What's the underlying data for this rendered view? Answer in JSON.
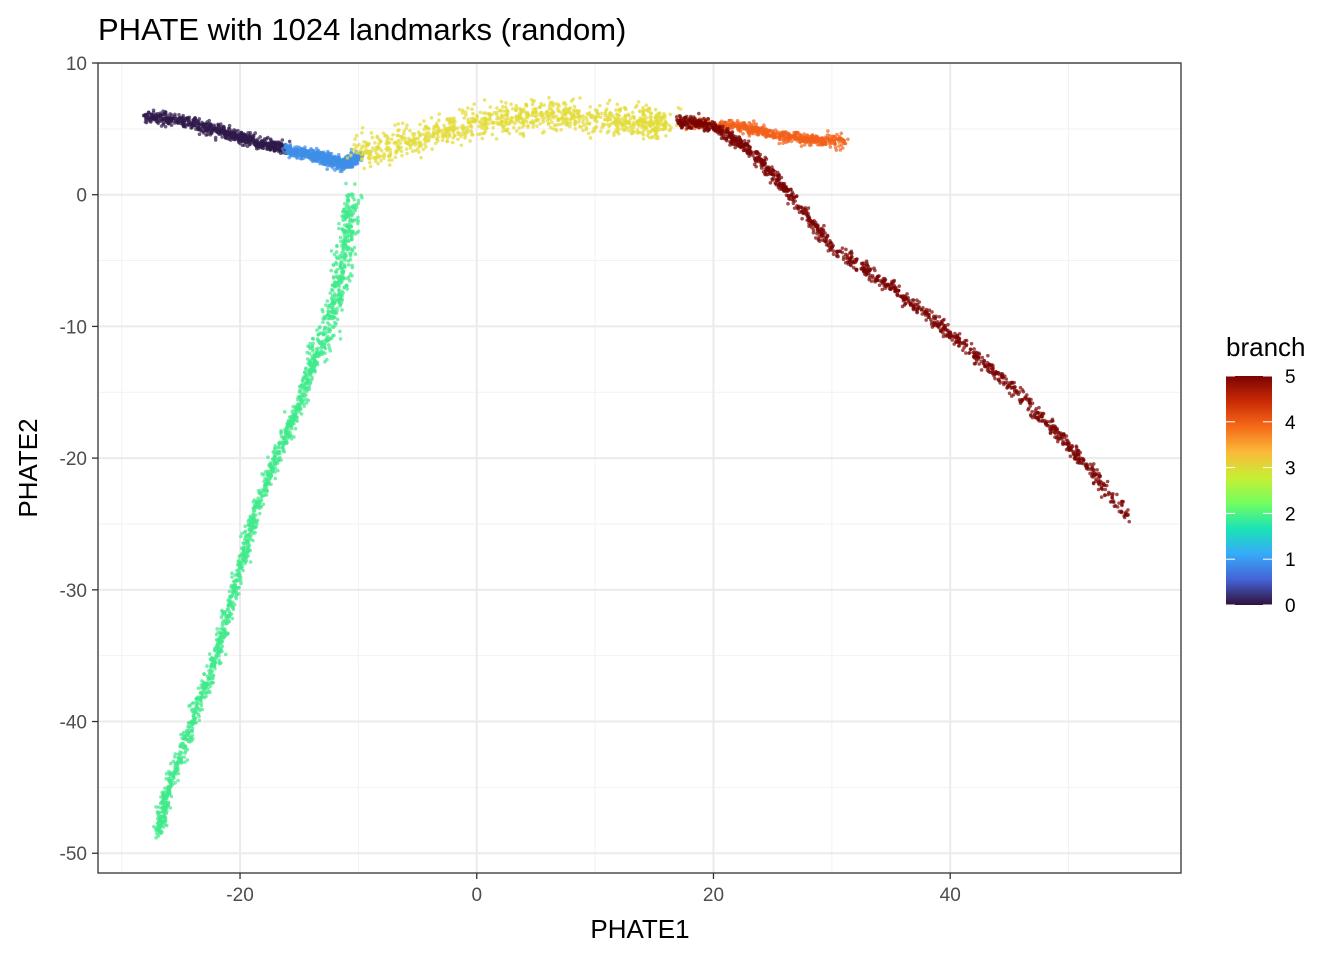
{
  "chart_data": {
    "type": "scatter",
    "title": "PHATE with 1024 landmarks (random)",
    "xlabel": "PHATE1",
    "ylabel": "PHATE2",
    "xlim": [
      -32,
      59.5
    ],
    "ylim": [
      -51.5,
      10
    ],
    "x_ticks": [
      -20,
      0,
      20,
      40
    ],
    "x_tick_labels": [
      "-20",
      "0",
      "20",
      "40"
    ],
    "y_ticks": [
      10,
      0,
      -10,
      -20,
      -30,
      -40,
      -50
    ],
    "y_tick_labels": [
      "10",
      "0",
      "-10",
      "-20",
      "-30",
      "-40",
      "-50"
    ],
    "grid": true,
    "legend": {
      "title": "branch",
      "type": "colorbar",
      "range": [
        0,
        5
      ],
      "ticks": [
        0,
        1,
        2,
        3,
        4,
        5
      ],
      "tick_labels": [
        "0",
        "1",
        "2",
        "3",
        "4",
        "5"
      ],
      "placement": "right",
      "colormap": [
        "#30123b",
        "#4662d7",
        "#36aaf9",
        "#1ae4b6",
        "#72fe5e",
        "#c8ef34",
        "#faba39",
        "#f66b19",
        "#ca2a04",
        "#7a0403"
      ]
    },
    "series": [
      {
        "branch": 0,
        "color": "#2f1a4a",
        "points": [
          [
            -28.0,
            6.0
          ],
          [
            -25.0,
            5.6
          ],
          [
            -22.0,
            4.9
          ],
          [
            -20.0,
            4.4
          ],
          [
            -18.0,
            3.8
          ],
          [
            -16.0,
            3.5
          ]
        ]
      },
      {
        "branch": 1,
        "color": "#3f8fe8",
        "points": [
          [
            -16.0,
            3.4
          ],
          [
            -14.5,
            3.1
          ],
          [
            -13.0,
            2.8
          ],
          [
            -12.0,
            2.5
          ],
          [
            -11.0,
            2.3
          ],
          [
            -10.0,
            3.0
          ]
        ]
      },
      {
        "branch": 2,
        "color": "#3ee98a",
        "points": [
          [
            -10.5,
            0.0
          ],
          [
            -11.0,
            -4.0
          ],
          [
            -12.0,
            -8.0
          ],
          [
            -13.5,
            -12.0
          ],
          [
            -15.0,
            -16.0
          ],
          [
            -17.0,
            -20.0
          ],
          [
            -19.0,
            -25.0
          ],
          [
            -20.5,
            -30.0
          ],
          [
            -22.0,
            -35.0
          ],
          [
            -24.0,
            -40.0
          ],
          [
            -26.0,
            -45.0
          ],
          [
            -27.0,
            -48.5
          ]
        ]
      },
      {
        "branch": 3,
        "color": "#e2dc39",
        "points": [
          [
            -10.0,
            3.2
          ],
          [
            -6.0,
            4.0
          ],
          [
            -2.0,
            5.0
          ],
          [
            2.0,
            5.8
          ],
          [
            6.0,
            6.0
          ],
          [
            10.0,
            5.8
          ],
          [
            14.0,
            5.5
          ],
          [
            16.0,
            5.4
          ]
        ]
      },
      {
        "branch": 4,
        "color": "#f2611a",
        "points": [
          [
            18.0,
            5.4
          ],
          [
            22.0,
            5.2
          ],
          [
            25.0,
            4.6
          ],
          [
            28.0,
            4.2
          ],
          [
            31.0,
            4.0
          ]
        ]
      },
      {
        "branch": 5,
        "color": "#7a0403",
        "points": [
          [
            17.0,
            5.6
          ],
          [
            20.0,
            5.2
          ],
          [
            23.0,
            3.5
          ],
          [
            26.0,
            0.5
          ],
          [
            30.0,
            -4.0
          ],
          [
            35.0,
            -7.0
          ],
          [
            40.0,
            -10.5
          ],
          [
            45.0,
            -14.5
          ],
          [
            50.0,
            -19.0
          ],
          [
            55.0,
            -24.3
          ]
        ]
      }
    ]
  }
}
